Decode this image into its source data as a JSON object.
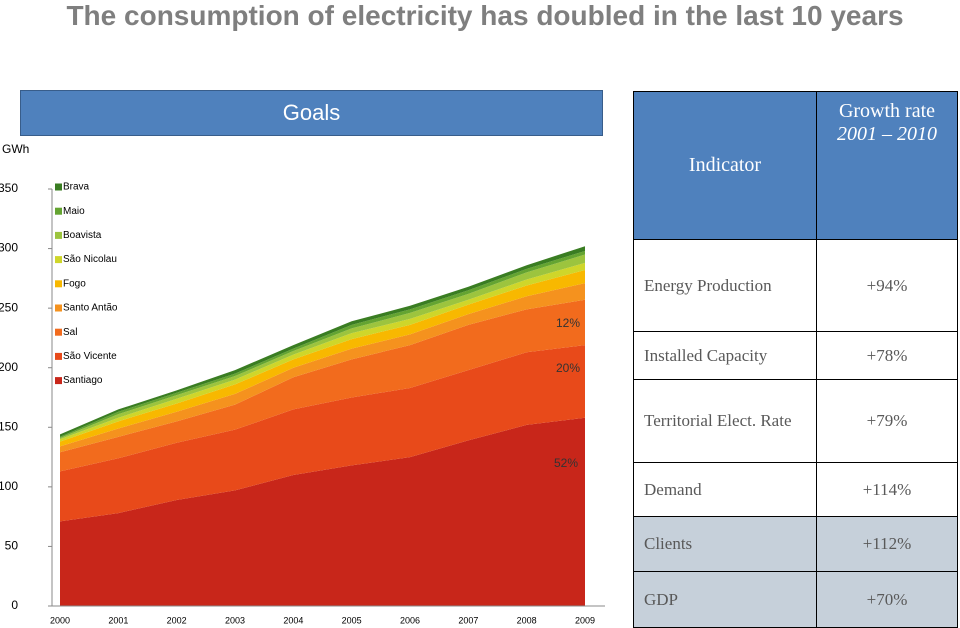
{
  "title": "The consumption of electricity has doubled in the last 10 years",
  "goals_banner": "Goals",
  "chart_data": {
    "type": "area",
    "stacked": true,
    "y_label": "GWh",
    "categories": [
      "2000",
      "2001",
      "2002",
      "2003",
      "2004",
      "2005",
      "2006",
      "2007",
      "2008",
      "2009"
    ],
    "ylim": [
      0,
      350
    ],
    "yticks": [
      0,
      50,
      100,
      150,
      200,
      250,
      300,
      350
    ],
    "grid": false,
    "series": [
      {
        "name": "Santiago",
        "color": "#c8261a",
        "values": [
          71,
          78,
          89,
          97,
          110,
          118,
          125,
          139,
          152,
          158
        ]
      },
      {
        "name": "São Vicente",
        "color": "#e84a1a",
        "values": [
          42,
          46,
          48,
          51,
          55,
          57,
          58,
          59,
          61,
          61
        ]
      },
      {
        "name": "Sal",
        "color": "#f26b1d",
        "values": [
          16,
          18,
          18,
          21,
          27,
          32,
          36,
          38,
          36,
          38
        ]
      },
      {
        "name": "Santo Antão",
        "color": "#f5921e",
        "values": [
          5,
          7,
          8,
          9,
          8,
          9,
          9,
          9,
          11,
          14
        ]
      },
      {
        "name": "Fogo",
        "color": "#f8b800",
        "values": [
          4,
          6,
          7,
          8,
          7,
          8,
          8,
          8,
          9,
          11
        ]
      },
      {
        "name": "São Nicolau",
        "color": "#cfd62a",
        "values": [
          2,
          3,
          4,
          4,
          4,
          5,
          5,
          4,
          5,
          6
        ]
      },
      {
        "name": "Boavista",
        "color": "#9cc43e",
        "values": [
          1,
          3,
          3,
          3,
          3,
          4,
          5,
          5,
          6,
          7
        ]
      },
      {
        "name": "Maio",
        "color": "#64a431",
        "values": [
          1,
          2,
          2,
          2,
          2,
          3,
          3,
          3,
          3,
          3
        ]
      },
      {
        "name": "Brava",
        "color": "#3a7d22",
        "values": [
          2,
          2,
          2,
          3,
          3,
          3,
          3,
          3,
          3,
          4
        ]
      }
    ],
    "annotations": [
      "12%",
      "20%",
      "52%"
    ]
  },
  "table": {
    "headers": {
      "indicator": "Indicator",
      "growth_rate": "Growth rate",
      "period": "2001 – 2010"
    },
    "rows": [
      [
        "Energy Production",
        "+94%"
      ],
      [
        "Installed Capacity",
        "+78%"
      ],
      [
        "Territorial Elect. Rate",
        "+79%"
      ],
      [
        "Demand",
        "+114%"
      ],
      [
        "Clients",
        "+112%"
      ],
      [
        "GDP",
        "+70%"
      ]
    ]
  }
}
